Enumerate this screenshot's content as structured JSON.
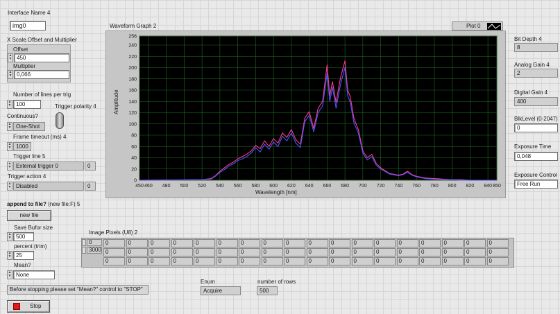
{
  "interface": {
    "label": "Interface Name 4",
    "value": "img0"
  },
  "xscale": {
    "label": "X Scale.Offset and Multiplier",
    "offset_label": "Offset",
    "offset_value": "450",
    "multiplier_label": "Multiplier",
    "multiplier_value": "0,066"
  },
  "lines_per_trig": {
    "label": "Number of lines per trig",
    "value": "100"
  },
  "trigger_polarity": {
    "label": "Trigger polarity 4"
  },
  "continuous": {
    "label": "Continuous?",
    "value": "One-Shot"
  },
  "frame_timeout": {
    "label": "Frame timeout (ms) 4",
    "value": "1000"
  },
  "trigger_line": {
    "label": "Trigger line 5",
    "value": "External trigger 0",
    "index": "0"
  },
  "trigger_action": {
    "label": "Trigger action 4",
    "value": "Disabled",
    "index": "0"
  },
  "append": {
    "label_bold": "append to file?",
    "label_rest": " (new file:F) 5",
    "button": "new file"
  },
  "save_buffer": {
    "label": "Save Bufor size",
    "value": "500"
  },
  "percent": {
    "label": "percent (trim)",
    "value": "25"
  },
  "mean": {
    "label": "Mean?",
    "value": "None"
  },
  "note": "Before stopping please set \"Mean?\" control to \"STOP\"",
  "stop": {
    "label": "Stop"
  },
  "enum": {
    "label": "Enum",
    "value": "Acquire"
  },
  "rows": {
    "label": "number of rows",
    "value": "500"
  },
  "image_pixels": {
    "label": "Image Pixels (U8) 2",
    "index_row": "0",
    "index_col": "3000",
    "cells": [
      [
        "0",
        "0",
        "0",
        "0",
        "0",
        "0",
        "0",
        "0",
        "0",
        "0",
        "0",
        "0",
        "0",
        "0",
        "0",
        "0",
        "0",
        "0"
      ],
      [
        "0",
        "0",
        "0",
        "0",
        "0",
        "0",
        "0",
        "0",
        "0",
        "0",
        "0",
        "0",
        "0",
        "0",
        "0",
        "0",
        "0",
        "0"
      ],
      [
        "0",
        "0",
        "0",
        "0",
        "0",
        "0",
        "0",
        "0",
        "0",
        "0",
        "0",
        "0",
        "0",
        "0",
        "0",
        "0",
        "0",
        "0"
      ]
    ]
  },
  "right_panel": {
    "bit_depth": {
      "label": "Bit Depth 4",
      "value": "8"
    },
    "analog_gain": {
      "label": "Analog Gain 4",
      "value": "2"
    },
    "digital_gain": {
      "label": "Digital Gain 4",
      "value": "400"
    },
    "blk_level": {
      "label": "BlkLevel (0-2047)",
      "value": "0"
    },
    "exposure_time": {
      "label": "Exposure Time",
      "value": "0,048"
    },
    "exposure_control": {
      "label": "Exposure Control",
      "value": "Free Run"
    }
  },
  "chart_data": {
    "type": "line",
    "title": "Waveform Graph 2",
    "legend": "Plot 0",
    "xlabel": "Wavelength [nm]",
    "ylabel": "Amplitude",
    "xlim": [
      450,
      850
    ],
    "ylim": [
      0,
      256
    ],
    "x_ticks": [
      "450",
      "460",
      "480",
      "500",
      "520",
      "540",
      "560",
      "580",
      "600",
      "620",
      "640",
      "660",
      "680",
      "700",
      "720",
      "740",
      "760",
      "780",
      "800",
      "820",
      "840",
      "850"
    ],
    "y_ticks": [
      0,
      20,
      40,
      60,
      80,
      100,
      120,
      140,
      160,
      180,
      200,
      220,
      240,
      256
    ],
    "grid": true,
    "series": [
      {
        "color": "#ff3a8c",
        "x": [
          450,
          520,
          530,
          535,
          540,
          545,
          550,
          555,
          560,
          565,
          570,
          575,
          580,
          585,
          590,
          595,
          600,
          605,
          610,
          615,
          620,
          625,
          630,
          635,
          640,
          645,
          650,
          655,
          660,
          663,
          666,
          670,
          675,
          680,
          683,
          686,
          690,
          695,
          700,
          705,
          710,
          715,
          720,
          730,
          740,
          745,
          750,
          755,
          760,
          770,
          780,
          790,
          800,
          810,
          820,
          830,
          850
        ],
        "y": [
          0,
          1,
          3,
          8,
          16,
          22,
          28,
          32,
          38,
          42,
          46,
          52,
          62,
          56,
          70,
          60,
          74,
          66,
          84,
          76,
          90,
          72,
          64,
          110,
          122,
          92,
          128,
          140,
          205,
          150,
          175,
          138,
          182,
          212,
          160,
          148,
          110,
          90,
          52,
          40,
          46,
          30,
          22,
          12,
          9,
          11,
          16,
          10,
          7,
          4,
          3,
          2,
          1,
          1,
          0,
          0,
          0
        ]
      },
      {
        "color": "#4a58ff",
        "x": [
          450,
          520,
          530,
          535,
          540,
          545,
          550,
          555,
          560,
          565,
          570,
          575,
          580,
          585,
          590,
          595,
          600,
          605,
          610,
          615,
          620,
          625,
          630,
          635,
          640,
          645,
          650,
          655,
          660,
          663,
          666,
          670,
          675,
          680,
          683,
          686,
          690,
          695,
          700,
          705,
          710,
          715,
          720,
          730,
          740,
          745,
          750,
          755,
          760,
          770,
          780,
          790,
          800,
          810,
          820,
          830,
          850
        ],
        "y": [
          0,
          1,
          2,
          7,
          14,
          19,
          25,
          29,
          35,
          38,
          42,
          48,
          58,
          50,
          64,
          55,
          68,
          60,
          78,
          70,
          84,
          66,
          58,
          104,
          115,
          86,
          120,
          132,
          190,
          140,
          165,
          128,
          170,
          200,
          150,
          138,
          102,
          84,
          48,
          36,
          42,
          27,
          20,
          11,
          8,
          10,
          14,
          9,
          6,
          3,
          2,
          1,
          1,
          0,
          0,
          0,
          0
        ]
      }
    ]
  }
}
